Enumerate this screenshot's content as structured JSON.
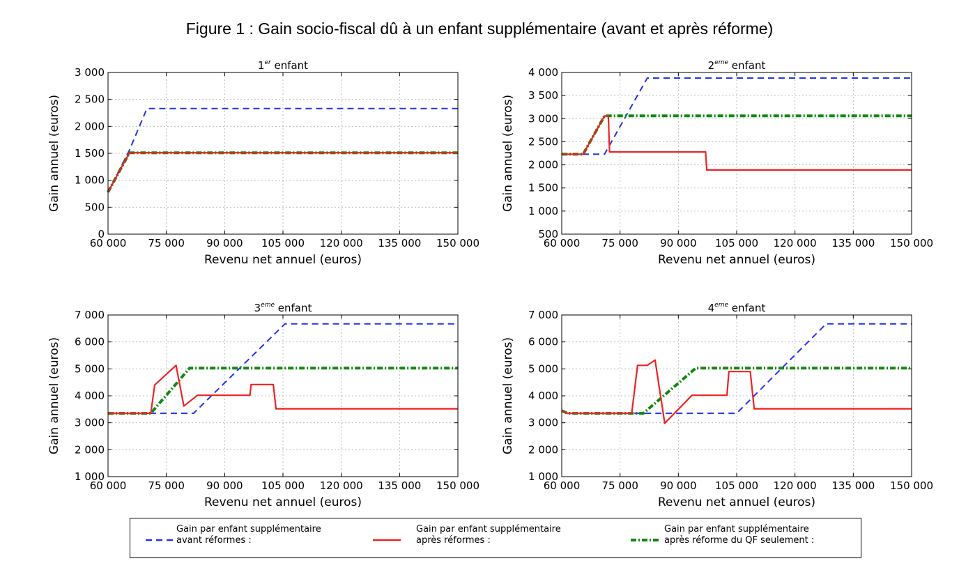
{
  "figure_title": "Figure 1 : Gain socio-fiscal dû à un enfant supplémentaire (avant et après réforme)",
  "colors": {
    "avant": "#2233ee",
    "apres": "#ee2222",
    "qf": "#118811"
  },
  "legend": [
    {
      "series": "avant",
      "label1": "Gain par enfant supplémentaire",
      "label2": "avant réformes :"
    },
    {
      "series": "apres",
      "label1": "Gain par enfant supplémentaire",
      "label2": "après réformes :"
    },
    {
      "series": "qf",
      "label1": "Gain par enfant supplémentaire",
      "label2": "après réforme du QF seulement :"
    }
  ],
  "chart_data": [
    {
      "type": "line",
      "title_prefix": "1",
      "title_sup": "er",
      "title_suffix": " enfant",
      "xlabel": "Revenu net annuel (euros)",
      "ylabel": "Gain annuel (euros)",
      "xlim": [
        60000,
        150000
      ],
      "ylim": [
        0,
        3000
      ],
      "xticks": [
        60000,
        75000,
        90000,
        105000,
        120000,
        135000,
        150000
      ],
      "xtick_labels": [
        "60 000",
        "75 000",
        "90 000",
        "105 000",
        "120 000",
        "135 000",
        "150 000"
      ],
      "yticks": [
        0,
        500,
        1000,
        1500,
        2000,
        2500,
        3000
      ],
      "ytick_labels": [
        "0",
        "500",
        "1 000",
        "1 500",
        "2 000",
        "2 500",
        "3 000"
      ],
      "series": [
        {
          "name": "avant",
          "x": [
            60000,
            65500,
            70000,
            150000
          ],
          "y": [
            780,
            1560,
            2330,
            2330
          ]
        },
        {
          "name": "apres",
          "x": [
            60000,
            65500,
            150000
          ],
          "y": [
            780,
            1510,
            1510
          ]
        },
        {
          "name": "qf",
          "x": [
            60000,
            65500,
            150000
          ],
          "y": [
            780,
            1510,
            1510
          ]
        }
      ]
    },
    {
      "type": "line",
      "title_prefix": "2",
      "title_sup": "eme",
      "title_suffix": " enfant",
      "xlabel": "Revenu net annuel (euros)",
      "ylabel": "Gain annuel (euros)",
      "xlim": [
        60000,
        150000
      ],
      "ylim": [
        500,
        4000
      ],
      "xticks": [
        60000,
        75000,
        90000,
        105000,
        120000,
        135000,
        150000
      ],
      "xtick_labels": [
        "60 000",
        "75 000",
        "90 000",
        "105 000",
        "120 000",
        "135 000",
        "150 000"
      ],
      "yticks": [
        500,
        1000,
        1500,
        2000,
        2500,
        3000,
        3500,
        4000
      ],
      "ytick_labels": [
        "500",
        "1 000",
        "1 500",
        "2 000",
        "2 500",
        "3 000",
        "3 500",
        "4 000"
      ],
      "series": [
        {
          "name": "avant",
          "x": [
            60000,
            66000,
            71000,
            82000,
            150000
          ],
          "y": [
            2230,
            2230,
            2230,
            3880,
            3880
          ]
        },
        {
          "name": "apres",
          "x": [
            60000,
            65500,
            71000,
            72000,
            72300,
            97000,
            97300,
            150000
          ],
          "y": [
            2230,
            2230,
            3060,
            3060,
            2280,
            2280,
            1890,
            1890
          ]
        },
        {
          "name": "qf",
          "x": [
            60000,
            65500,
            71000,
            150000
          ],
          "y": [
            2230,
            2230,
            3060,
            3060
          ]
        }
      ]
    },
    {
      "type": "line",
      "title_prefix": "3",
      "title_sup": "eme",
      "title_suffix": " enfant",
      "xlabel": "Revenu net annuel (euros)",
      "ylabel": "Gain annuel (euros)",
      "xlim": [
        60000,
        150000
      ],
      "ylim": [
        1000,
        7000
      ],
      "xticks": [
        60000,
        75000,
        90000,
        105000,
        120000,
        135000,
        150000
      ],
      "xtick_labels": [
        "60 000",
        "75 000",
        "90 000",
        "105 000",
        "120 000",
        "135 000",
        "150 000"
      ],
      "yticks": [
        1000,
        2000,
        3000,
        4000,
        5000,
        6000,
        7000
      ],
      "ytick_labels": [
        "1 000",
        "2 000",
        "3 000",
        "4 000",
        "5 000",
        "6 000",
        "7 000"
      ],
      "series": [
        {
          "name": "avant",
          "x": [
            60000,
            82000,
            105500,
            150000
          ],
          "y": [
            3350,
            3350,
            6670,
            6670
          ]
        },
        {
          "name": "apres",
          "x": [
            60000,
            71000,
            72000,
            77500,
            79500,
            83000,
            96500,
            96800,
            102500,
            103200,
            150000
          ],
          "y": [
            3350,
            3350,
            4400,
            5130,
            3620,
            4020,
            4020,
            4420,
            4420,
            3520,
            3520
          ]
        },
        {
          "name": "qf",
          "x": [
            60000,
            71000,
            81000,
            150000
          ],
          "y": [
            3350,
            3350,
            5030,
            5030
          ]
        }
      ]
    },
    {
      "type": "line",
      "title_prefix": "4",
      "title_sup": "eme",
      "title_suffix": " enfant",
      "xlabel": "Revenu net annuel (euros)",
      "ylabel": "Gain annuel (euros)",
      "xlim": [
        60000,
        150000
      ],
      "ylim": [
        1000,
        7000
      ],
      "xticks": [
        60000,
        75000,
        90000,
        105000,
        120000,
        135000,
        150000
      ],
      "xtick_labels": [
        "60 000",
        "75 000",
        "90 000",
        "105 000",
        "120 000",
        "135 000",
        "150 000"
      ],
      "yticks": [
        1000,
        2000,
        3000,
        4000,
        5000,
        6000,
        7000
      ],
      "ytick_labels": [
        "1 000",
        "2 000",
        "3 000",
        "4 000",
        "5 000",
        "6 000",
        "7 000"
      ],
      "series": [
        {
          "name": "avant",
          "x": [
            60000,
            61500,
            105000,
            128000,
            150000
          ],
          "y": [
            3450,
            3350,
            3350,
            6670,
            6670
          ]
        },
        {
          "name": "apres",
          "x": [
            60000,
            61500,
            78000,
            79500,
            82000,
            84000,
            86500,
            93500,
            102500,
            103000,
            108500,
            109500,
            150000
          ],
          "y": [
            3450,
            3350,
            3350,
            5130,
            5130,
            5330,
            2980,
            4020,
            4020,
            4900,
            4900,
            3520,
            3520
          ]
        },
        {
          "name": "qf",
          "x": [
            60000,
            61500,
            81000,
            94500,
            150000
          ],
          "y": [
            3450,
            3350,
            3350,
            5030,
            5030
          ]
        }
      ]
    }
  ]
}
